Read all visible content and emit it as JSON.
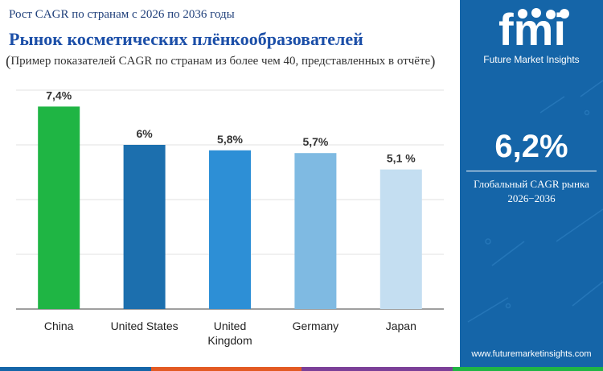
{
  "header": {
    "subtitle": "Рост CAGR по странам с 2026 по 2036 годы",
    "title": "Рынок косметических плёнкообразователей",
    "note_open": "(",
    "note": "Пример показателей CAGR по странам из более чем 40, представленных в отчёте",
    "note_close": ")"
  },
  "chart_data": {
    "type": "bar",
    "categories": [
      "China",
      "United States",
      "United Kingdom",
      "Germany",
      "Japan"
    ],
    "values": [
      7.4,
      6.0,
      5.8,
      5.7,
      5.1
    ],
    "data_labels": [
      "7,4%",
      "6%",
      "5,8%",
      "5,7%",
      "5,1 %"
    ],
    "colors": [
      "#1fb544",
      "#1c6fae",
      "#2d8fd6",
      "#7fbae2",
      "#c4def1"
    ],
    "ylim": [
      0,
      8
    ],
    "yticks": [
      0,
      2,
      4,
      6,
      8
    ],
    "grid": true,
    "title": "",
    "xlabel": "",
    "ylabel": ""
  },
  "colors": {
    "sidebar": "#1565a8",
    "title": "#1c4fa8",
    "strip": [
      "#1565a8",
      "#e35a23",
      "#7b3f98",
      "#1fb544"
    ]
  },
  "sidebar": {
    "logo_text": "fmi",
    "logo_subtitle": "Future Market Insights",
    "global_cagr": "6,2%",
    "global_label_line1": "Глобальный CAGR рынка",
    "global_label_line2": "2026−2036",
    "website": "www.futuremarketinsights.com"
  }
}
